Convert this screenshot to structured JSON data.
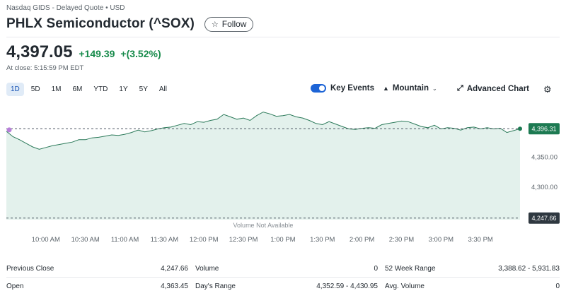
{
  "header": {
    "exchange_info": "Nasdaq GIDS - Delayed Quote • USD",
    "title": "PHLX Semiconductor (^SOX)",
    "follow_label": "Follow"
  },
  "quote": {
    "price": "4,397.05",
    "change": "+149.39",
    "change_pct": "+(3.52%)",
    "close_time": "At close: 5:15:59 PM EDT"
  },
  "ranges": [
    "1D",
    "5D",
    "1M",
    "6M",
    "YTD",
    "1Y",
    "5Y",
    "All"
  ],
  "active_range": "1D",
  "toolbar": {
    "key_events_label": "Key Events",
    "chart_type_label": "Mountain",
    "advanced_chart_label": "Advanced Chart"
  },
  "colors": {
    "positive": "#168a4a",
    "area_fill": "#e3f1ec",
    "line": "#2c7a5a",
    "accent_blue": "#1d64d6",
    "event_marker": "#b77fd9"
  },
  "icons": {
    "follow": "star-icon",
    "chart_type": "mountain-icon",
    "advanced": "expand-icon",
    "settings": "gear-icon"
  },
  "chart_data": {
    "type": "area",
    "x_ticks": [
      "10:00 AM",
      "10:30 AM",
      "11:00 AM",
      "11:30 AM",
      "12:00 PM",
      "12:30 PM",
      "1:00 PM",
      "1:30 PM",
      "2:00 PM",
      "2:30 PM",
      "3:00 PM",
      "3:30 PM"
    ],
    "y_ticks": [
      "4,350.00",
      "4,300.00"
    ],
    "ylim": [
      4245,
      4440
    ],
    "reference_line": {
      "label": "4,247.66",
      "value": 4247.66,
      "note": "previous close"
    },
    "current_value": {
      "label": "4,396.31",
      "value": 4396.31
    },
    "top_dashed_line": 4396.31,
    "volume_note": "Volume Not Available",
    "series": [
      {
        "x": [
          "9:30",
          "9:35",
          "9:40",
          "9:45",
          "9:50",
          "9:55",
          "10:00",
          "10:05",
          "10:10",
          "10:15",
          "10:20",
          "10:25",
          "10:30",
          "10:35",
          "10:40",
          "10:45",
          "10:50",
          "10:55",
          "11:00",
          "11:05",
          "11:10",
          "11:15",
          "11:20",
          "11:25",
          "11:30",
          "11:35",
          "11:40",
          "11:45",
          "11:50",
          "11:55",
          "12:00",
          "12:05",
          "12:10",
          "12:15",
          "12:20",
          "12:25",
          "12:30",
          "12:35",
          "12:40",
          "12:45",
          "12:50",
          "12:55",
          "13:00",
          "13:05",
          "13:10",
          "13:15",
          "13:20",
          "13:25",
          "13:30",
          "13:35",
          "13:40",
          "13:45",
          "13:50",
          "13:55",
          "14:00",
          "14:05",
          "14:10",
          "14:15",
          "14:20",
          "14:25",
          "14:30",
          "14:35",
          "14:40",
          "14:45",
          "14:50",
          "14:55",
          "15:00",
          "15:05",
          "15:10",
          "15:15",
          "15:20",
          "15:25",
          "15:30",
          "15:35",
          "15:40",
          "15:45",
          "15:50",
          "15:55",
          "16:00"
        ],
        "values": [
          4392,
          4383,
          4378,
          4372,
          4366,
          4362,
          4365,
          4368,
          4370,
          4372,
          4374,
          4378,
          4378,
          4381,
          4382,
          4384,
          4386,
          4385,
          4387,
          4390,
          4394,
          4391,
          4393,
          4396,
          4398,
          4399,
          4402,
          4405,
          4403,
          4408,
          4407,
          4410,
          4412,
          4420,
          4416,
          4412,
          4414,
          4410,
          4418,
          4424,
          4421,
          4417,
          4418,
          4420,
          4416,
          4414,
          4410,
          4405,
          4403,
          4408,
          4404,
          4400,
          4396,
          4395,
          4397,
          4398,
          4397,
          4403,
          4405,
          4407,
          4409,
          4408,
          4404,
          4400,
          4398,
          4402,
          4396,
          4398,
          4397,
          4394,
          4398,
          4399,
          4396,
          4398,
          4396,
          4397,
          4390,
          4393,
          4396.31
        ]
      }
    ]
  },
  "stats": {
    "rows": [
      [
        {
          "label": "Previous Close",
          "value": "4,247.66"
        },
        {
          "label": "Volume",
          "value": "0"
        },
        {
          "label": "52 Week Range",
          "value": "3,388.62 - 5,931.83"
        }
      ],
      [
        {
          "label": "Open",
          "value": "4,363.45"
        },
        {
          "label": "Day's Range",
          "value": "4,352.59 - 4,430.95"
        },
        {
          "label": "Avg. Volume",
          "value": "0"
        }
      ]
    ]
  }
}
